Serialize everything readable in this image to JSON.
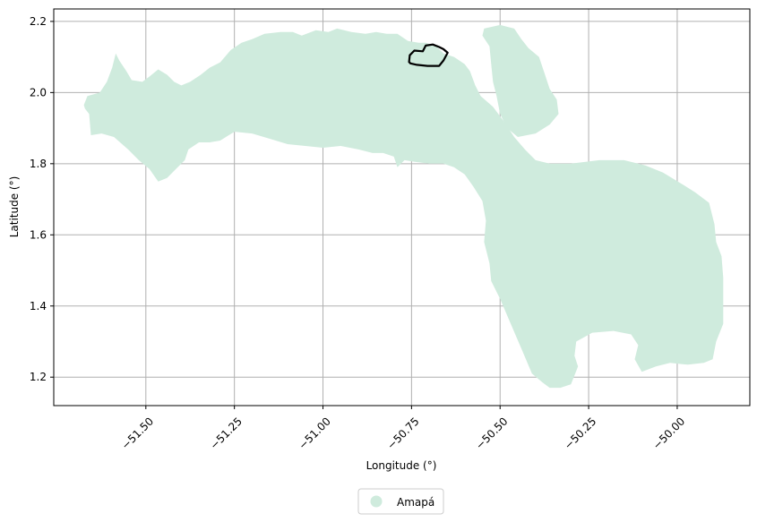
{
  "map": {
    "xlabel": "Longitude (°)",
    "ylabel": "Latitude (°)",
    "xlim": [
      -51.76,
      -49.795
    ],
    "ylim": [
      1.12,
      2.235
    ],
    "x_ticks": [
      -51.5,
      -51.25,
      -51.0,
      -50.75,
      -50.5,
      -50.25,
      -50.0
    ],
    "x_tick_labels": [
      "−51.50",
      "−51.25",
      "−51.00",
      "−50.75",
      "−50.50",
      "−50.25",
      "−50.00"
    ],
    "y_ticks": [
      1.2,
      1.4,
      1.6,
      1.8,
      2.0,
      2.2
    ],
    "y_tick_labels": [
      "1.2",
      "1.4",
      "1.6",
      "1.8",
      "2.0",
      "2.2"
    ],
    "grid": true,
    "region_fill_color": "#cfebdd",
    "outline_color": "#000000",
    "legend": {
      "placement": "bottom-center",
      "label": "Amapá"
    },
    "region_polygon": [
      [
        -51.655,
        1.88
      ],
      [
        -51.66,
        1.94
      ],
      [
        -51.672,
        1.955
      ],
      [
        -51.675,
        1.965
      ],
      [
        -51.665,
        1.99
      ],
      [
        -51.63,
        2.0
      ],
      [
        -51.61,
        2.03
      ],
      [
        -51.595,
        2.07
      ],
      [
        -51.585,
        2.11
      ],
      [
        -51.575,
        2.09
      ],
      [
        -51.555,
        2.06
      ],
      [
        -51.54,
        2.035
      ],
      [
        -51.51,
        2.03
      ],
      [
        -51.49,
        2.045
      ],
      [
        -51.465,
        2.065
      ],
      [
        -51.44,
        2.05
      ],
      [
        -51.42,
        2.03
      ],
      [
        -51.4,
        2.02
      ],
      [
        -51.375,
        2.03
      ],
      [
        -51.345,
        2.05
      ],
      [
        -51.32,
        2.07
      ],
      [
        -51.29,
        2.085
      ],
      [
        -51.26,
        2.12
      ],
      [
        -51.23,
        2.14
      ],
      [
        -51.2,
        2.15
      ],
      [
        -51.165,
        2.165
      ],
      [
        -51.12,
        2.17
      ],
      [
        -51.085,
        2.17
      ],
      [
        -51.06,
        2.16
      ],
      [
        -51.02,
        2.175
      ],
      [
        -50.985,
        2.17
      ],
      [
        -50.96,
        2.18
      ],
      [
        -50.92,
        2.17
      ],
      [
        -50.88,
        2.165
      ],
      [
        -50.85,
        2.17
      ],
      [
        -50.82,
        2.165
      ],
      [
        -50.79,
        2.165
      ],
      [
        -50.76,
        2.145
      ],
      [
        -50.73,
        2.14
      ],
      [
        -50.71,
        2.14
      ],
      [
        -50.68,
        2.13
      ],
      [
        -50.66,
        2.11
      ],
      [
        -50.63,
        2.1
      ],
      [
        -50.6,
        2.08
      ],
      [
        -50.585,
        2.06
      ],
      [
        -50.57,
        2.02
      ],
      [
        -50.555,
        1.99
      ],
      [
        -50.52,
        1.96
      ],
      [
        -50.49,
        1.92
      ],
      [
        -50.46,
        1.875
      ],
      [
        -50.43,
        1.84
      ],
      [
        -50.4,
        1.81
      ],
      [
        -50.36,
        1.8
      ],
      [
        -50.3,
        1.8
      ],
      [
        -50.22,
        1.81
      ],
      [
        -50.15,
        1.81
      ],
      [
        -50.09,
        1.795
      ],
      [
        -50.04,
        1.775
      ],
      [
        -49.99,
        1.745
      ],
      [
        -49.95,
        1.72
      ],
      [
        -49.91,
        1.69
      ],
      [
        -49.895,
        1.63
      ],
      [
        -49.89,
        1.58
      ],
      [
        -49.875,
        1.54
      ],
      [
        -49.87,
        1.48
      ],
      [
        -49.87,
        1.42
      ],
      [
        -49.87,
        1.35
      ],
      [
        -49.89,
        1.3
      ],
      [
        -49.9,
        1.25
      ],
      [
        -49.925,
        1.24
      ],
      [
        -49.97,
        1.235
      ],
      [
        -50.02,
        1.24
      ],
      [
        -50.06,
        1.23
      ],
      [
        -50.1,
        1.215
      ],
      [
        -50.12,
        1.25
      ],
      [
        -50.11,
        1.29
      ],
      [
        -50.13,
        1.32
      ],
      [
        -50.18,
        1.33
      ],
      [
        -50.24,
        1.325
      ],
      [
        -50.285,
        1.3
      ],
      [
        -50.29,
        1.26
      ],
      [
        -50.28,
        1.23
      ],
      [
        -50.29,
        1.205
      ],
      [
        -50.3,
        1.18
      ],
      [
        -50.33,
        1.17
      ],
      [
        -50.36,
        1.17
      ],
      [
        -50.38,
        1.185
      ],
      [
        -50.41,
        1.21
      ],
      [
        -50.44,
        1.28
      ],
      [
        -50.47,
        1.35
      ],
      [
        -50.5,
        1.42
      ],
      [
        -50.525,
        1.47
      ],
      [
        -50.53,
        1.52
      ],
      [
        -50.545,
        1.58
      ],
      [
        -50.54,
        1.64
      ],
      [
        -50.55,
        1.695
      ],
      [
        -50.575,
        1.735
      ],
      [
        -50.6,
        1.77
      ],
      [
        -50.63,
        1.79
      ],
      [
        -50.66,
        1.8
      ],
      [
        -50.7,
        1.8
      ],
      [
        -50.74,
        1.805
      ],
      [
        -50.77,
        1.81
      ],
      [
        -50.79,
        1.79
      ],
      [
        -50.8,
        1.82
      ],
      [
        -50.83,
        1.83
      ],
      [
        -50.86,
        1.83
      ],
      [
        -50.9,
        1.84
      ],
      [
        -50.95,
        1.85
      ],
      [
        -51.0,
        1.845
      ],
      [
        -51.05,
        1.85
      ],
      [
        -51.1,
        1.855
      ],
      [
        -51.15,
        1.87
      ],
      [
        -51.2,
        1.885
      ],
      [
        -51.25,
        1.89
      ],
      [
        -51.29,
        1.865
      ],
      [
        -51.32,
        1.86
      ],
      [
        -51.35,
        1.86
      ],
      [
        -51.38,
        1.84
      ],
      [
        -51.39,
        1.81
      ],
      [
        -51.42,
        1.78
      ],
      [
        -51.44,
        1.76
      ],
      [
        -51.465,
        1.75
      ],
      [
        -51.49,
        1.785
      ],
      [
        -51.52,
        1.81
      ],
      [
        -51.55,
        1.84
      ],
      [
        -51.59,
        1.875
      ],
      [
        -51.625,
        1.885
      ]
    ],
    "island_polygon": [
      [
        -50.545,
        2.18
      ],
      [
        -50.5,
        2.19
      ],
      [
        -50.46,
        2.18
      ],
      [
        -50.44,
        2.15
      ],
      [
        -50.42,
        2.125
      ],
      [
        -50.39,
        2.1
      ],
      [
        -50.375,
        2.055
      ],
      [
        -50.36,
        2.01
      ],
      [
        -50.34,
        1.98
      ],
      [
        -50.335,
        1.94
      ],
      [
        -50.36,
        1.91
      ],
      [
        -50.4,
        1.885
      ],
      [
        -50.45,
        1.875
      ],
      [
        -50.48,
        1.9
      ],
      [
        -50.5,
        1.94
      ],
      [
        -50.51,
        1.99
      ],
      [
        -50.52,
        2.03
      ],
      [
        -50.525,
        2.08
      ],
      [
        -50.53,
        2.13
      ],
      [
        -50.55,
        2.16
      ]
    ],
    "outline_polygon": [
      [
        -50.757,
        2.086
      ],
      [
        -50.755,
        2.105
      ],
      [
        -50.742,
        2.118
      ],
      [
        -50.718,
        2.116
      ],
      [
        -50.71,
        2.132
      ],
      [
        -50.69,
        2.135
      ],
      [
        -50.672,
        2.128
      ],
      [
        -50.66,
        2.122
      ],
      [
        -50.648,
        2.112
      ],
      [
        -50.66,
        2.09
      ],
      [
        -50.672,
        2.075
      ],
      [
        -50.705,
        2.075
      ],
      [
        -50.735,
        2.078
      ],
      [
        -50.753,
        2.082
      ]
    ]
  }
}
